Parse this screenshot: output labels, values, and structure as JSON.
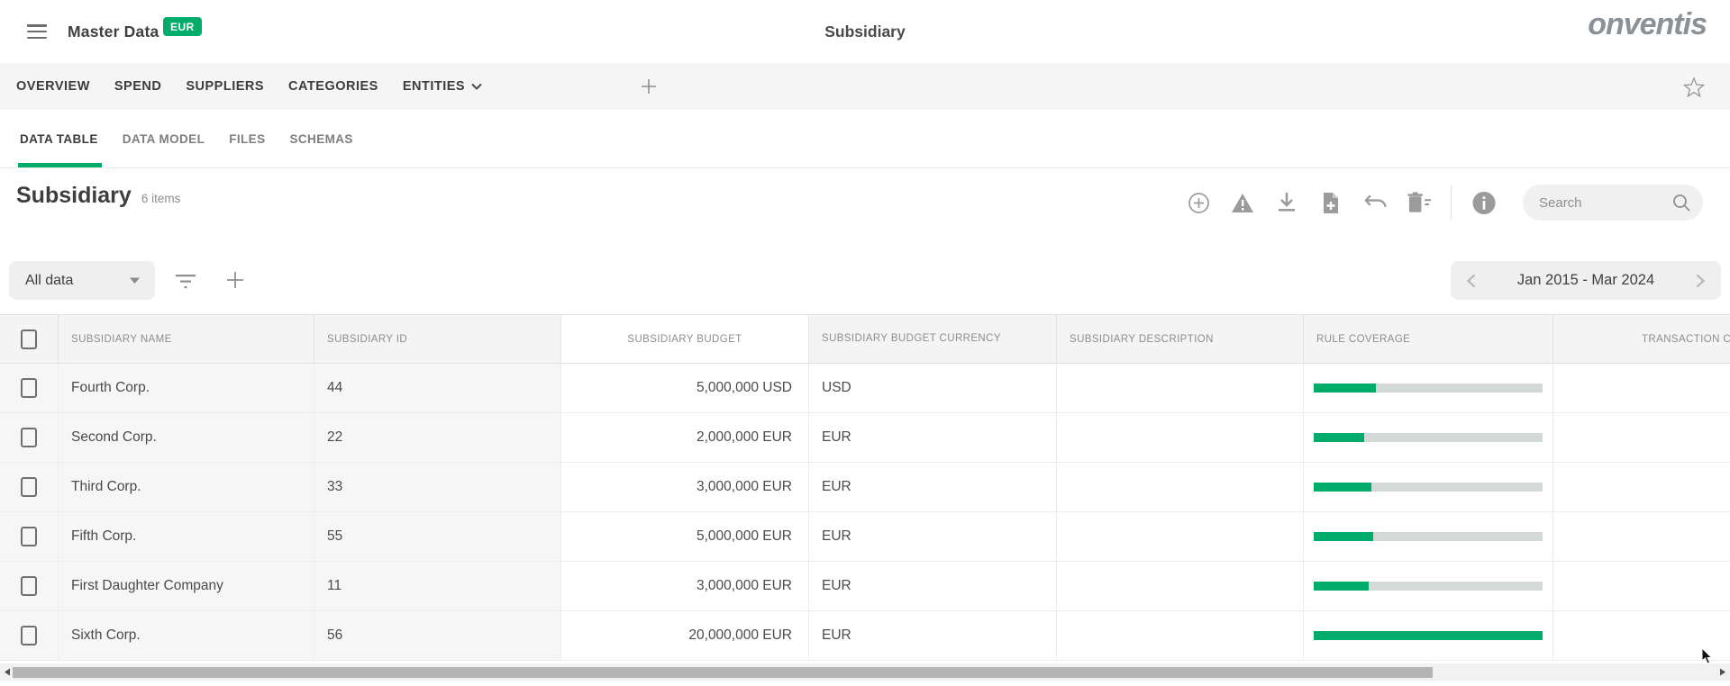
{
  "colors": {
    "accent_green": "#00AC69",
    "bar_track": "#D3D9D6"
  },
  "app_header": {
    "menu_icon": "hamburger-icon",
    "left_title": "Master Data",
    "currency_badge": "EUR",
    "center_title": "Subsidiary",
    "logo_text": "onventis"
  },
  "nav_tabs": {
    "items": [
      {
        "label": "OVERVIEW"
      },
      {
        "label": "SPEND"
      },
      {
        "label": "SUPPLIERS"
      },
      {
        "label": "CATEGORIES"
      },
      {
        "label": "ENTITIES",
        "caret_icon": "chevron-down-icon"
      }
    ],
    "add_tab_icon": "plus-icon",
    "favorite_icon": "star-icon"
  },
  "subtabs": {
    "items": [
      {
        "label": "DATA TABLE",
        "active": true
      },
      {
        "label": "DATA MODEL"
      },
      {
        "label": "FILES"
      },
      {
        "label": "SCHEMAS"
      }
    ]
  },
  "page_header": {
    "title": "Subsidiary",
    "item_count": "6 items"
  },
  "toolbar": {
    "icons": [
      "add-circle-icon",
      "warning-triangle-icon",
      "download-icon",
      "file-add-icon",
      "undo-icon",
      "trash-icon",
      "info-icon"
    ],
    "search_placeholder": "Search"
  },
  "filter_bar": {
    "view_selector_value": "All data",
    "filter_icon": "filter-lines-icon",
    "add_filter_icon": "plus-icon",
    "date_range": "Jan 2015 - Mar 2024",
    "prev_icon": "chevron-left-icon",
    "next_icon": "chevron-right-icon"
  },
  "table": {
    "columns": [
      {
        "label": ""
      },
      {
        "label": "SUBSIDIARY NAME"
      },
      {
        "label": "SUBSIDIARY ID"
      },
      {
        "label": "SUBSIDIARY BUDGET"
      },
      {
        "label": "SUBSIDIARY BUDGET CURRENCY"
      },
      {
        "label": "SUBSIDIARY DESCRIPTION"
      },
      {
        "label": "RULE COVERAGE"
      },
      {
        "label": "TRANSACTION CO"
      }
    ],
    "rows": [
      {
        "name": "Fourth Corp.",
        "id": "44",
        "budget": "5,000,000 USD",
        "currency": "USD",
        "description": "",
        "rule_coverage_pct": 27,
        "transaction": ""
      },
      {
        "name": "Second Corp.",
        "id": "22",
        "budget": "2,000,000 EUR",
        "currency": "EUR",
        "description": "",
        "rule_coverage_pct": 22,
        "transaction": ""
      },
      {
        "name": "Third Corp.",
        "id": "33",
        "budget": "3,000,000 EUR",
        "currency": "EUR",
        "description": "",
        "rule_coverage_pct": 25,
        "transaction": ""
      },
      {
        "name": "Fifth Corp.",
        "id": "55",
        "budget": "5,000,000 EUR",
        "currency": "EUR",
        "description": "",
        "rule_coverage_pct": 26,
        "transaction": ""
      },
      {
        "name": "First Daughter Company",
        "id": "11",
        "budget": "3,000,000 EUR",
        "currency": "EUR",
        "description": "",
        "rule_coverage_pct": 24,
        "transaction": ""
      },
      {
        "name": "Sixth Corp.",
        "id": "56",
        "budget": "20,000,000 EUR",
        "currency": "EUR",
        "description": "",
        "rule_coverage_pct": 100,
        "transaction": ""
      }
    ]
  }
}
